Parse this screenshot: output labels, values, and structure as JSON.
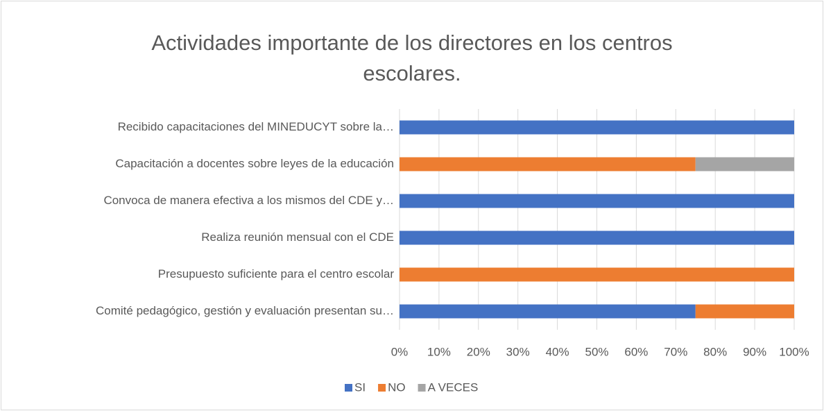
{
  "chart_data": {
    "type": "bar_stacked_horizontal_100",
    "title": "Actividades importante de los directores en los centros escolares.",
    "categories": [
      "Recibido capacitaciones del MINEDUCYT sobre la…",
      "Capacitación a docentes sobre leyes de la educación",
      "Convoca de manera efectiva a los mismos del CDE y…",
      "Realiza reunión mensual con el CDE",
      "Presupuesto suficiente para el centro escolar",
      "Comité pedagógico, gestión y evaluación presentan su…"
    ],
    "series": [
      {
        "name": "SI",
        "color": "#4472c4",
        "values": [
          100,
          0,
          100,
          100,
          0,
          75
        ]
      },
      {
        "name": "NO",
        "color": "#ed7d31",
        "values": [
          0,
          75,
          0,
          0,
          100,
          25
        ]
      },
      {
        "name": "A VECES",
        "color": "#a5a5a5",
        "values": [
          0,
          25,
          0,
          0,
          0,
          0
        ]
      }
    ],
    "xlim": [
      0,
      100
    ],
    "xticks": [
      {
        "value": 0,
        "label": "0%"
      },
      {
        "value": 10,
        "label": "10%"
      },
      {
        "value": 20,
        "label": "20%"
      },
      {
        "value": 30,
        "label": "30%"
      },
      {
        "value": 40,
        "label": "40%"
      },
      {
        "value": 50,
        "label": "50%"
      },
      {
        "value": 60,
        "label": "60%"
      },
      {
        "value": 70,
        "label": "70%"
      },
      {
        "value": 80,
        "label": "80%"
      },
      {
        "value": 90,
        "label": "90%"
      },
      {
        "value": 100,
        "label": "100%"
      }
    ],
    "grid": true,
    "legend": "bottom"
  }
}
